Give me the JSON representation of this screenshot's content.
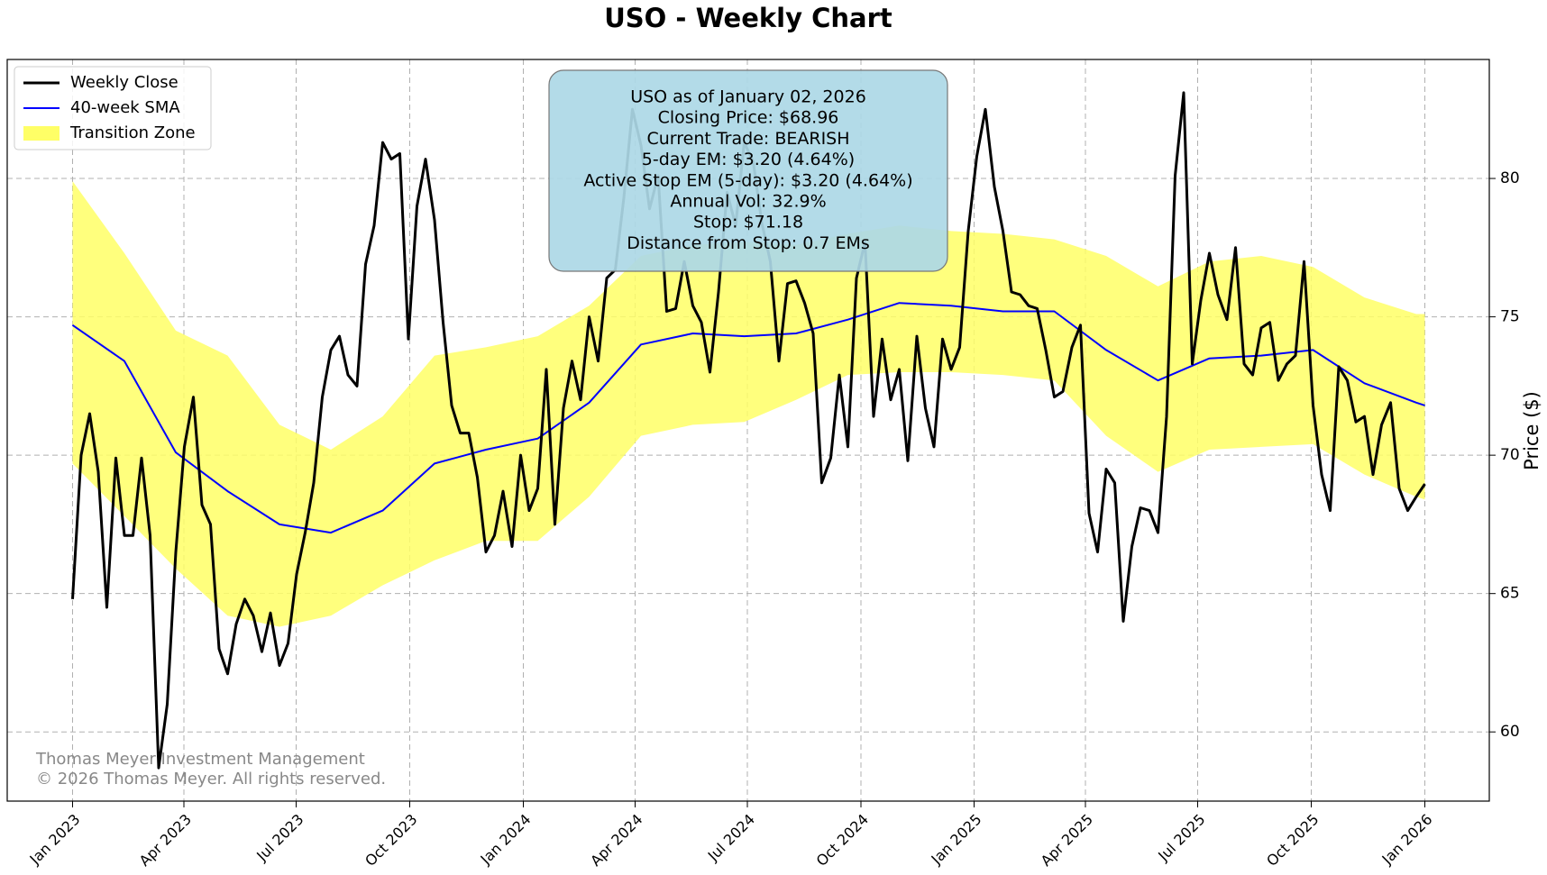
{
  "chart_data": {
    "type": "line",
    "title": "USO - Weekly Chart",
    "ylabel": "Price ($)",
    "x": [
      2023.0,
      2023.019,
      2023.038,
      2023.057,
      2023.076,
      2023.096,
      2023.115,
      2023.134,
      2023.153,
      2023.172,
      2023.191,
      2023.21,
      2023.229,
      2023.248,
      2023.268,
      2023.287,
      2023.306,
      2023.325,
      2023.344,
      2023.363,
      2023.382,
      2023.401,
      2023.42,
      2023.439,
      2023.459,
      2023.478,
      2023.497,
      2023.516,
      2023.535,
      2023.554,
      2023.573,
      2023.592,
      2023.611,
      2023.631,
      2023.65,
      2023.669,
      2023.688,
      2023.707,
      2023.726,
      2023.745,
      2023.764,
      2023.783,
      2023.803,
      2023.822,
      2023.841,
      2023.86,
      2023.879,
      2023.898,
      2023.917,
      2023.936,
      2023.955,
      2023.975,
      2023.994,
      2024.013,
      2024.032,
      2024.051,
      2024.07,
      2024.089,
      2024.108,
      2024.127,
      2024.146,
      2024.166,
      2024.185,
      2024.204,
      2024.223,
      2024.242,
      2024.261,
      2024.28,
      2024.299,
      2024.318,
      2024.338,
      2024.357,
      2024.376,
      2024.395,
      2024.414,
      2024.433,
      2024.452,
      2024.471,
      2024.49,
      2024.51,
      2024.529,
      2024.548,
      2024.567,
      2024.586,
      2024.605,
      2024.624,
      2024.643,
      2024.662,
      2024.682,
      2024.701,
      2024.72,
      2024.739,
      2024.758,
      2024.777,
      2024.796,
      2024.815,
      2024.834,
      2024.853,
      2024.873,
      2024.892,
      2024.911,
      2024.93,
      2024.949,
      2024.968,
      2024.987,
      2025.006,
      2025.025,
      2025.045,
      2025.064,
      2025.083,
      2025.102,
      2025.121,
      2025.14,
      2025.159,
      2025.178,
      2025.197,
      2025.217,
      2025.236,
      2025.255,
      2025.274,
      2025.293,
      2025.312,
      2025.331,
      2025.35,
      2025.369,
      2025.389,
      2025.408,
      2025.427,
      2025.446,
      2025.465,
      2025.484,
      2025.503,
      2025.522,
      2025.541,
      2025.561,
      2025.58,
      2025.599,
      2025.618,
      2025.637,
      2025.656,
      2025.675,
      2025.694,
      2025.713,
      2025.732,
      2025.752,
      2025.771,
      2025.79,
      2025.809,
      2025.828,
      2025.847,
      2025.866,
      2025.885,
      2025.904,
      2025.924,
      2025.943,
      2025.962,
      2025.981,
      2026.0
    ],
    "series": [
      {
        "name": "Weekly Close",
        "color": "#000000",
        "values": [
          64.8,
          70.0,
          71.5,
          69.4,
          64.5,
          69.9,
          67.1,
          67.1,
          69.9,
          67.1,
          58.7,
          61.0,
          66.5,
          70.3,
          72.1,
          68.2,
          67.5,
          63.0,
          62.1,
          63.9,
          64.8,
          64.2,
          62.9,
          64.3,
          62.4,
          63.2,
          65.7,
          67.2,
          69.0,
          72.1,
          73.8,
          74.3,
          72.9,
          72.5,
          76.9,
          78.3,
          81.3,
          80.7,
          80.9,
          74.2,
          79.0,
          80.7,
          78.5,
          74.8,
          71.8,
          70.8,
          70.8,
          69.2,
          66.5,
          67.1,
          68.7,
          66.7,
          70.0,
          68.0,
          68.8,
          73.1,
          67.5,
          71.7,
          73.4,
          72.0,
          75.0,
          73.4,
          76.4,
          76.7,
          79.3,
          82.5,
          81.2,
          78.9,
          80.1,
          75.2,
          75.3,
          77.0,
          75.4,
          74.8,
          73.0,
          75.9,
          79.5,
          78.3,
          81.3,
          80.6,
          78.4,
          77.0,
          73.4,
          76.2,
          76.3,
          75.5,
          74.4,
          69.0,
          69.9,
          72.9,
          70.3,
          76.4,
          77.7,
          71.4,
          74.2,
          72.0,
          73.1,
          69.8,
          74.3,
          71.7,
          70.3,
          74.2,
          73.1,
          73.9,
          78.1,
          80.8,
          82.5,
          79.7,
          78.1,
          75.9,
          75.8,
          75.4,
          75.3,
          73.8,
          72.1,
          72.3,
          73.9,
          74.7,
          67.9,
          66.5,
          69.5,
          69.0,
          64.0,
          66.7,
          68.1,
          68.0,
          67.2,
          71.4,
          80.1,
          83.1,
          73.3,
          75.6,
          77.3,
          75.8,
          74.9,
          77.5,
          73.3,
          72.9,
          74.6,
          74.8,
          72.7,
          73.3,
          73.6,
          77.0,
          71.8,
          69.3,
          68.0,
          73.2,
          72.7,
          71.2,
          71.4,
          69.3,
          71.1,
          71.9,
          68.8,
          68.0,
          68.5,
          68.96
        ]
      },
      {
        "name": "40-week SMA",
        "color": "#0000ff",
        "x": [
          2023.0,
          2023.115,
          2023.229,
          2023.344,
          2023.459,
          2023.573,
          2023.688,
          2023.803,
          2023.917,
          2024.032,
          2024.146,
          2024.261,
          2024.376,
          2024.49,
          2024.605,
          2024.72,
          2024.834,
          2024.949,
          2025.064,
          2025.178,
          2025.293,
          2025.408,
          2025.522,
          2025.637,
          2025.752,
          2025.866,
          2025.981,
          2026.0
        ],
        "values": [
          74.7,
          73.4,
          70.1,
          68.7,
          67.5,
          67.2,
          68.0,
          69.7,
          70.2,
          70.6,
          71.9,
          74.0,
          74.4,
          74.3,
          74.4,
          74.9,
          75.5,
          75.4,
          75.2,
          75.2,
          73.8,
          72.7,
          73.5,
          73.6,
          73.8,
          72.6,
          71.9,
          71.8
        ]
      }
    ],
    "band": {
      "name": "Transition Zone",
      "color": "#ffff66",
      "x": [
        2023.0,
        2023.115,
        2023.229,
        2023.344,
        2023.459,
        2023.573,
        2023.688,
        2023.803,
        2023.917,
        2024.032,
        2024.146,
        2024.261,
        2024.376,
        2024.49,
        2024.605,
        2024.72,
        2024.834,
        2024.949,
        2025.064,
        2025.178,
        2025.293,
        2025.408,
        2025.522,
        2025.637,
        2025.752,
        2025.866,
        2025.981,
        2026.0
      ],
      "upper": [
        79.9,
        77.3,
        74.5,
        73.6,
        71.1,
        70.2,
        71.4,
        73.6,
        73.9,
        74.3,
        75.4,
        77.2,
        77.6,
        77.7,
        77.6,
        78.0,
        78.3,
        78.1,
        78.0,
        77.8,
        77.2,
        76.1,
        77.0,
        77.2,
        76.8,
        75.7,
        75.1,
        75.1
      ],
      "lower": [
        69.7,
        67.8,
        65.9,
        64.2,
        63.8,
        64.2,
        65.3,
        66.2,
        66.9,
        66.9,
        68.5,
        70.7,
        71.1,
        71.2,
        72.0,
        72.9,
        73.0,
        73.0,
        72.9,
        72.7,
        70.7,
        69.4,
        70.2,
        70.3,
        70.4,
        69.3,
        68.5,
        68.4
      ]
    },
    "xlim": [
      2022.855,
      2026.143
    ],
    "ylim": [
      57.5,
      84.3
    ],
    "xticks": [
      {
        "value": 2023,
        "label": "Jan 2023"
      },
      {
        "value": 2023.247,
        "label": "Apr 2023"
      },
      {
        "value": 2023.496,
        "label": "Jul 2023"
      },
      {
        "value": 2023.748,
        "label": "Oct 2023"
      },
      {
        "value": 2024,
        "label": "Jan 2024"
      },
      {
        "value": 2024.248,
        "label": "Apr 2024"
      },
      {
        "value": 2024.497,
        "label": "Jul 2024"
      },
      {
        "value": 2024.749,
        "label": "Oct 2024"
      },
      {
        "value": 2025,
        "label": "Jan 2025"
      },
      {
        "value": 2025.247,
        "label": "Apr 2025"
      },
      {
        "value": 2025.496,
        "label": "Jul 2025"
      },
      {
        "value": 2025.748,
        "label": "Oct 2025"
      },
      {
        "value": 2026,
        "label": "Jan 2026"
      }
    ],
    "yticks": [
      60,
      65,
      70,
      75,
      80
    ],
    "grid": true,
    "legend": "upper left",
    "annotation": {
      "color": "#add8e6",
      "lines": [
        "USO as of January 02, 2026",
        "Closing Price: $68.96",
        "Current Trade: BEARISH",
        "5-day EM: $3.20 (4.64%)",
        "Active Stop EM (5-day): $3.20 (4.64%)",
        "Annual Vol: 32.9%",
        "Stop: $71.18",
        "Distance from Stop: 0.7 EMs"
      ]
    },
    "watermark": [
      "Thomas Meyer Investment Management",
      "© 2026 Thomas Meyer. All rights reserved."
    ]
  }
}
